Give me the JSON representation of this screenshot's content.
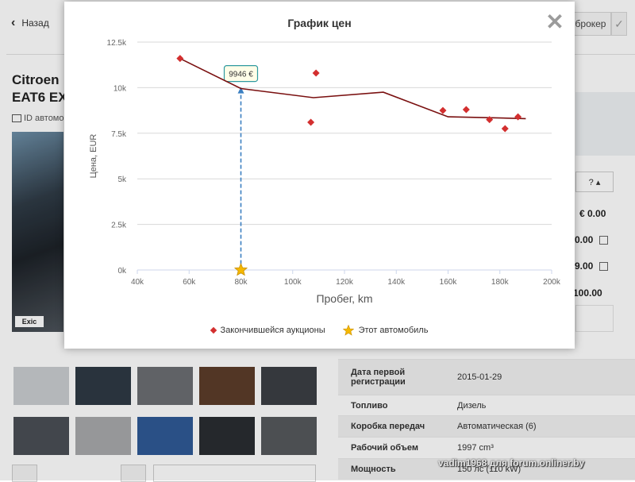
{
  "nav": {
    "back_label": "Назад",
    "broker_label": "брокер"
  },
  "car": {
    "title_line1": "Citroen",
    "title_line2": "EAT6 EX",
    "id_label": "ID автомо"
  },
  "photo": {
    "logo_text": "Exic"
  },
  "right_panel": {
    "dropdown_label": "? ▴",
    "prices": [
      "€ 0.00",
      "0.00",
      "9.00",
      "100.00"
    ]
  },
  "specs": [
    {
      "key": "Дата первой регистрации",
      "value": "2015-01-29"
    },
    {
      "key": "Топливо",
      "value": "Дизель"
    },
    {
      "key": "Коробка передач",
      "value": "Автоматическая (6)"
    },
    {
      "key": "Рабочий объем",
      "value": "1997 cm³"
    },
    {
      "key": "Мощность",
      "value": "150 лс (110 kW)"
    }
  ],
  "watermark": "vadim1968 для forum.onliner.by",
  "modal": {
    "title": "График цен",
    "close_label": "✕"
  },
  "chart_data": {
    "type": "scatter",
    "title": "График цен",
    "xlabel": "Пробег, km",
    "ylabel": "Цена, EUR",
    "xlim": [
      40000,
      200000
    ],
    "ylim": [
      0,
      12500
    ],
    "x_ticks": [
      40000,
      60000,
      80000,
      100000,
      120000,
      140000,
      160000,
      180000,
      200000
    ],
    "x_tick_labels": [
      "40k",
      "60k",
      "80k",
      "100k",
      "120k",
      "140k",
      "160k",
      "180k",
      "200k"
    ],
    "y_ticks": [
      0,
      2500,
      5000,
      7500,
      10000,
      12500
    ],
    "y_tick_labels": [
      "0k",
      "2.5k",
      "5k",
      "7.5k",
      "10k",
      "12.5k"
    ],
    "grid": "horizontal",
    "legend_position": "bottom",
    "series": [
      {
        "name": "Закончившейся аукционы",
        "kind": "scatter",
        "color": "#d32f2f",
        "points": [
          [
            56500,
            11600
          ],
          [
            107000,
            8100
          ],
          [
            109000,
            10800
          ],
          [
            158000,
            8750
          ],
          [
            167000,
            8800
          ],
          [
            176000,
            8250
          ],
          [
            182000,
            7750
          ],
          [
            187000,
            8400
          ]
        ]
      },
      {
        "name": "",
        "kind": "line",
        "color": "#7a1010",
        "points": [
          [
            56500,
            11600
          ],
          [
            80000,
            9950
          ],
          [
            108000,
            9450
          ],
          [
            135000,
            9750
          ],
          [
            160000,
            8400
          ],
          [
            177000,
            8350
          ],
          [
            190000,
            8300
          ]
        ]
      },
      {
        "name": "Этот автомобиль",
        "kind": "star",
        "color": "#f5b800",
        "points": [
          [
            80000,
            0
          ]
        ]
      }
    ],
    "annotation": {
      "x": 80000,
      "y": 9946,
      "label": "9946 €",
      "line_color": "#3a7fc1"
    }
  }
}
